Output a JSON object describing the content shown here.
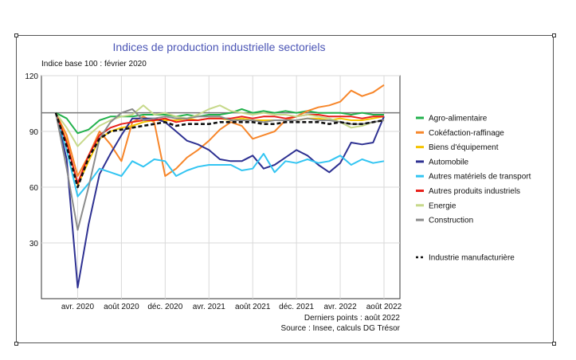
{
  "chart_data": {
    "type": "line",
    "title": "Indices de production industrielle sectoriels",
    "subtitle": "Indice base 100 : février 2020",
    "footer_lines": [
      "Derniers points : août 2022",
      "Source : Insee, calculs DG Trésor"
    ],
    "x": [
      "févr. 2020",
      "mars 2020",
      "avr. 2020",
      "mai 2020",
      "juin 2020",
      "juil. 2020",
      "août 2020",
      "sept. 2020",
      "oct. 2020",
      "nov. 2020",
      "déc. 2020",
      "janv. 2021",
      "févr. 2021",
      "mars 2021",
      "avr. 2021",
      "mai 2021",
      "juin 2021",
      "juil. 2021",
      "août 2021",
      "sept. 2021",
      "oct. 2021",
      "nov. 2021",
      "déc. 2021",
      "janv. 2022",
      "févr. 2022",
      "mars 2022",
      "avr. 2022",
      "mai 2022",
      "juin 2022",
      "juil. 2022",
      "août 2022"
    ],
    "x_ticks": [
      {
        "label": "avr. 2020",
        "index": 2
      },
      {
        "label": "août 2020",
        "index": 6
      },
      {
        "label": "déc. 2020",
        "index": 10
      },
      {
        "label": "avr. 2021",
        "index": 14
      },
      {
        "label": "août 2021",
        "index": 18
      },
      {
        "label": "déc. 2021",
        "index": 22
      },
      {
        "label": "avr. 2022",
        "index": 26
      },
      {
        "label": "août 2022",
        "index": 30
      }
    ],
    "y_ticks": [
      30,
      60,
      90,
      120
    ],
    "ylim": [
      0,
      120
    ],
    "reference_line": 100,
    "legend_position": "right",
    "series": [
      {
        "name": "Agro-alimentaire",
        "color": "#22b14c",
        "style": "solid",
        "values": [
          100,
          97,
          89,
          91,
          96,
          98,
          98,
          98,
          99,
          99,
          99,
          98,
          99,
          98,
          99,
          99,
          100,
          102,
          100,
          101,
          100,
          101,
          100,
          101,
          100,
          100,
          100,
          99,
          100,
          99,
          99
        ]
      },
      {
        "name": "Cokéfaction-raffinage",
        "color": "#f7862a",
        "style": "solid",
        "values": [
          100,
          88,
          66,
          77,
          90,
          83,
          74,
          95,
          98,
          95,
          66,
          70,
          76,
          80,
          85,
          91,
          95,
          93,
          86,
          88,
          90,
          96,
          98,
          101,
          103,
          104,
          106,
          112,
          109,
          111,
          115
        ]
      },
      {
        "name": "Biens d'équipement",
        "color": "#f5c400",
        "style": "solid",
        "values": [
          100,
          85,
          61,
          74,
          86,
          90,
          92,
          93,
          95,
          96,
          96,
          96,
          97,
          96,
          97,
          97,
          96,
          97,
          96,
          96,
          96,
          96,
          96,
          97,
          97,
          96,
          97,
          96,
          96,
          97,
          98
        ]
      },
      {
        "name": "Automobile",
        "color": "#2e3192",
        "style": "solid",
        "values": [
          100,
          75,
          6,
          40,
          67,
          78,
          88,
          97,
          97,
          97,
          95,
          90,
          85,
          83,
          80,
          75,
          74,
          74,
          77,
          70,
          72,
          76,
          80,
          77,
          72,
          68,
          73,
          84,
          83,
          84,
          98
        ]
      },
      {
        "name": "Autres matériels de transport",
        "color": "#33c5f2",
        "style": "solid",
        "values": [
          100,
          80,
          55,
          62,
          70,
          68,
          66,
          74,
          71,
          75,
          74,
          66,
          69,
          71,
          72,
          72,
          72,
          69,
          70,
          78,
          68,
          74,
          73,
          75,
          73,
          74,
          77,
          72,
          75,
          73,
          74
        ]
      },
      {
        "name": "Autres produits industriels",
        "color": "#e8201a",
        "style": "solid",
        "values": [
          100,
          84,
          62,
          77,
          88,
          92,
          94,
          95,
          96,
          96,
          97,
          95,
          96,
          96,
          97,
          97,
          97,
          98,
          97,
          98,
          98,
          97,
          98,
          99,
          99,
          98,
          98,
          98,
          97,
          98,
          98
        ]
      },
      {
        "name": "Energie",
        "color": "#c7d98b",
        "style": "solid",
        "values": [
          100,
          92,
          82,
          88,
          93,
          96,
          98,
          99,
          104,
          99,
          100,
          98,
          97,
          99,
          102,
          104,
          101,
          100,
          99,
          100,
          99,
          99,
          98,
          99,
          98,
          97,
          95,
          92,
          93,
          95,
          96
        ]
      },
      {
        "name": "Construction",
        "color": "#8c8c8c",
        "style": "solid",
        "values": [
          100,
          70,
          37,
          60,
          86,
          95,
          100,
          102,
          96,
          97,
          98,
          97,
          97,
          98,
          98,
          98,
          96,
          96,
          96,
          95,
          96,
          96,
          96,
          97,
          96,
          96,
          95,
          94,
          94,
          95,
          96
        ]
      },
      {
        "name": "Industrie manufacturière",
        "color": "#111111",
        "style": "dashed",
        "values": [
          100,
          82,
          60,
          76,
          86,
          90,
          91,
          92,
          93,
          94,
          95,
          93,
          94,
          94,
          94,
          95,
          95,
          95,
          95,
          94,
          94,
          95,
          95,
          95,
          95,
          94,
          95,
          94,
          94,
          95,
          96
        ]
      }
    ]
  }
}
